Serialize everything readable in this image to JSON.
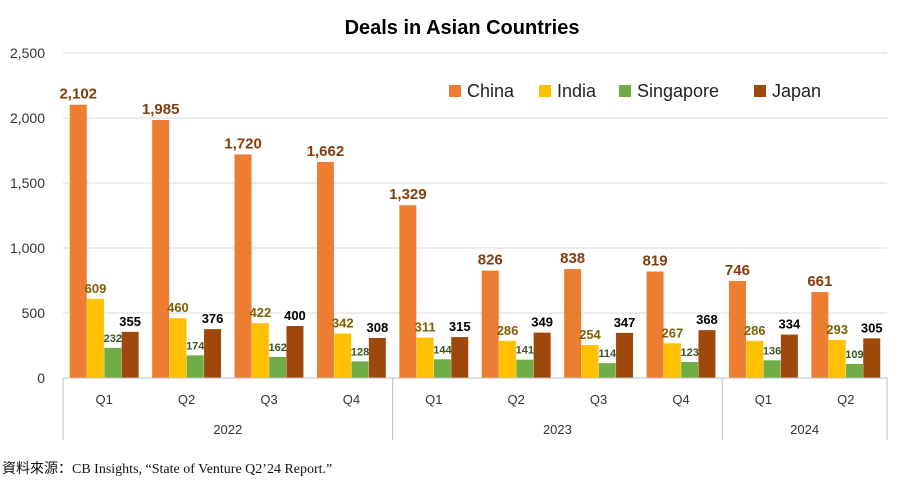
{
  "chart_data": {
    "type": "bar",
    "title": "Deals in Asian Countries",
    "ylim": [
      0,
      2500
    ],
    "yticks": [
      "0",
      "500",
      "1,000",
      "1,500",
      "2,000",
      "2,500"
    ],
    "grid": true,
    "legend_position": "top-right",
    "categories": [
      "Q1",
      "Q2",
      "Q3",
      "Q4",
      "Q1",
      "Q2",
      "Q3",
      "Q4",
      "Q1",
      "Q2"
    ],
    "year_groups": [
      {
        "label": "2022",
        "count": 4
      },
      {
        "label": "2023",
        "count": 4
      },
      {
        "label": "2024",
        "count": 2
      }
    ],
    "series": [
      {
        "name": "China",
        "color": "#ED7D31",
        "label_color": "#843C0C",
        "values": [
          2102,
          1985,
          1720,
          1662,
          1329,
          826,
          838,
          819,
          746,
          661
        ],
        "labels": [
          "2,102",
          "1,985",
          "1,720",
          "1,662",
          "1,329",
          "826",
          "838",
          "819",
          "746",
          "661"
        ]
      },
      {
        "name": "India",
        "color": "#FFC000",
        "label_color": "#7F6000",
        "values": [
          609,
          460,
          422,
          342,
          311,
          286,
          254,
          267,
          286,
          293
        ],
        "labels": [
          "609",
          "460",
          "422",
          "342",
          "311",
          "286",
          "254",
          "267",
          "286",
          "293"
        ]
      },
      {
        "name": "Singapore",
        "color": "#70AD47",
        "label_color": "#375623",
        "values": [
          232,
          174,
          162,
          128,
          144,
          141,
          114,
          123,
          136,
          109
        ],
        "labels": [
          "232",
          "174",
          "162",
          "128",
          "144",
          "141",
          "114",
          "123",
          "136",
          "109"
        ]
      },
      {
        "name": "Japan",
        "color": "#9E480E",
        "label_color": "#000000",
        "values": [
          355,
          376,
          400,
          308,
          315,
          349,
          347,
          368,
          334,
          305
        ],
        "labels": [
          "355",
          "376",
          "400",
          "308",
          "315",
          "349",
          "347",
          "368",
          "334",
          "305"
        ]
      }
    ]
  },
  "source_note": "資料來源：CB Insights, “State of Venture Q2’24 Report.”"
}
